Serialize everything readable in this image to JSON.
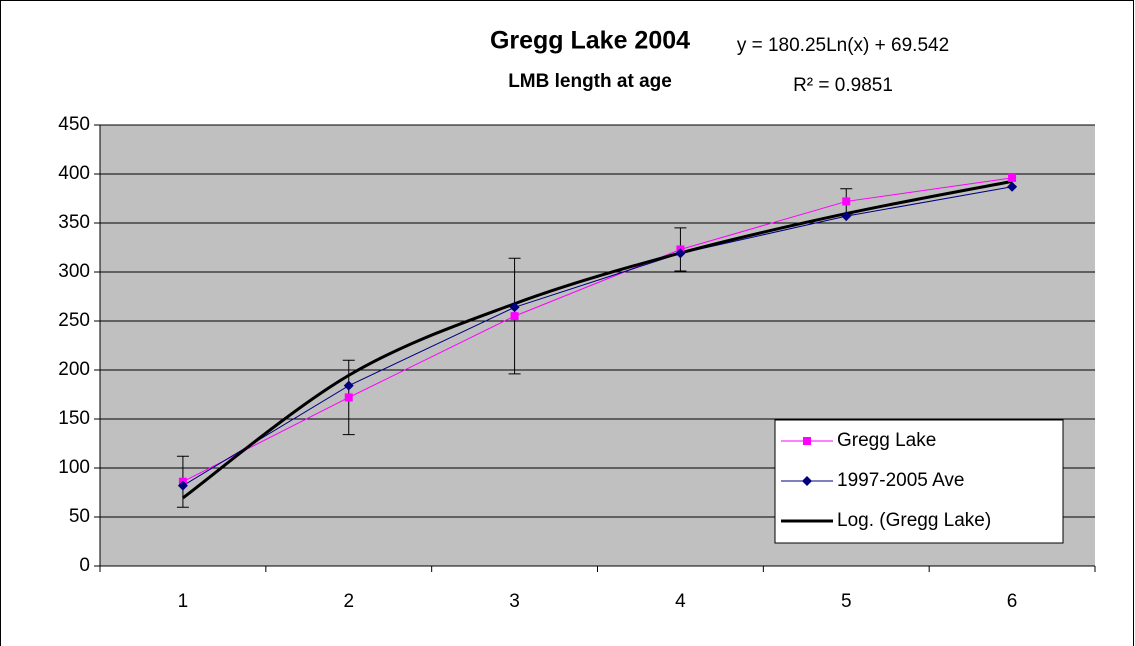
{
  "chart_data": {
    "type": "line",
    "title": "Gregg Lake 2004",
    "subtitle": "LMB length at age",
    "annotations": [
      "y = 180.25Ln(x) + 69.542",
      "R² = 0.9851"
    ],
    "categories": [
      "1",
      "2",
      "3",
      "4",
      "5",
      "6"
    ],
    "series": [
      {
        "name": "Gregg Lake",
        "color": "#ff00ff",
        "marker": "square",
        "values": [
          86,
          172,
          255,
          323,
          372,
          396
        ],
        "errors": [
          26,
          38,
          59,
          22,
          13,
          null
        ]
      },
      {
        "name": "1997-2005 Ave",
        "color": "#000080",
        "marker": "diamond",
        "values": [
          82,
          184,
          264,
          319,
          357,
          387
        ]
      },
      {
        "name": "Log. (Gregg Lake)",
        "color": "#000000",
        "marker": "none",
        "values": [
          69.5,
          194.5,
          267.6,
          319.4,
          359.6,
          392.5
        ]
      }
    ],
    "ylim": [
      0,
      450
    ],
    "yticks": [
      0,
      50,
      100,
      150,
      200,
      250,
      300,
      350,
      400,
      450
    ],
    "grid": true,
    "legend": "lower right"
  }
}
